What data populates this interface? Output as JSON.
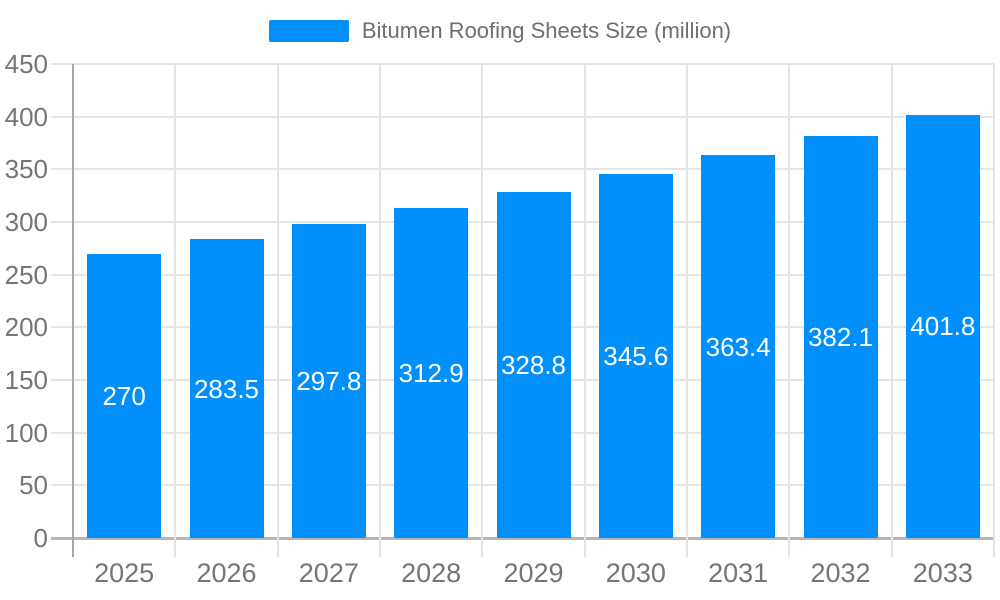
{
  "chart_data": {
    "type": "bar",
    "title": "Bitumen Roofing Sheets Size (million)",
    "categories": [
      "2025",
      "2026",
      "2027",
      "2028",
      "2029",
      "2030",
      "2031",
      "2032",
      "2033"
    ],
    "series": [
      {
        "name": "Bitumen Roofing Sheets Size (million)",
        "values": [
          270,
          283.5,
          297.8,
          312.9,
          328.8,
          345.6,
          363.4,
          382.1,
          401.8
        ]
      }
    ],
    "xlabel": "",
    "ylabel": "",
    "ylim": [
      0,
      450
    ],
    "ytick_step": 50,
    "grid": true,
    "legend_position": "top",
    "colors": {
      "bar": "#008FFB",
      "bar_value_label": "#ffffff",
      "axis_label": "#757575",
      "legend_text": "#6e6e6e",
      "gridline": "#e4e4e4",
      "y_axis_line": "#a8a8a8",
      "baseline": "#b6b6b6",
      "background": "#ffffff"
    }
  }
}
